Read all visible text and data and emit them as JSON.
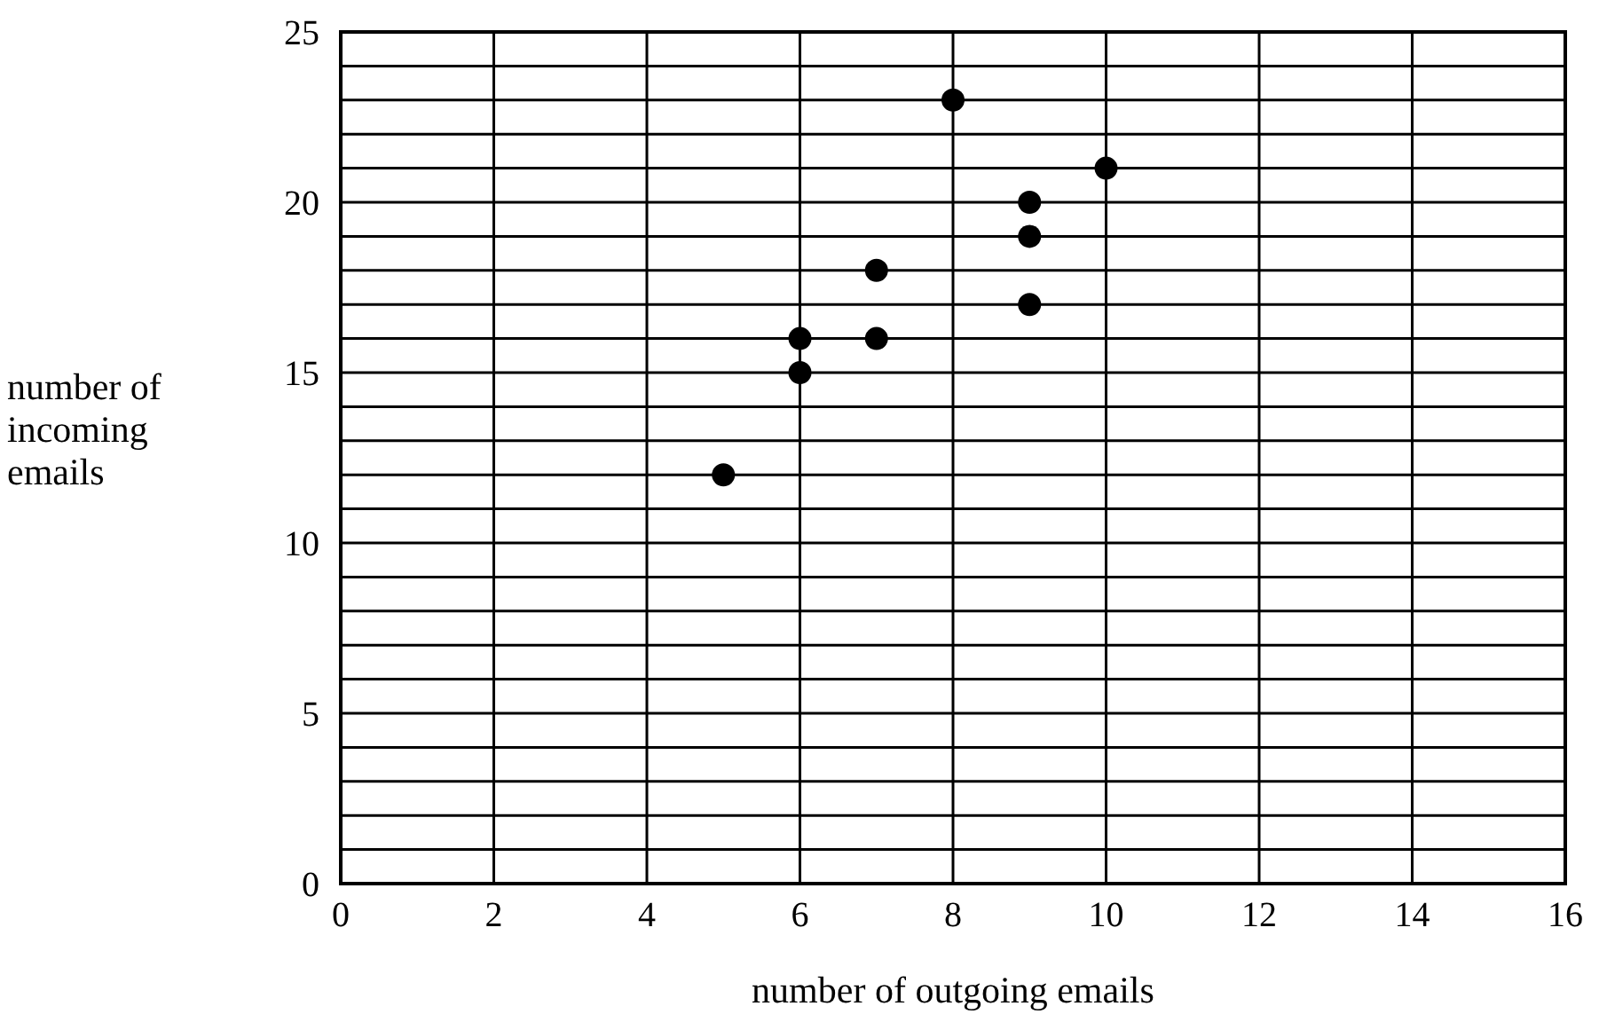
{
  "chart_data": {
    "type": "scatter",
    "xlabel": "number of outgoing emails",
    "ylabel": "number of incoming emails",
    "x": [
      5,
      6,
      6,
      7,
      7,
      8,
      9,
      9,
      9,
      10
    ],
    "series": [
      {
        "color": "#000000",
        "values": [
          12,
          15,
          16,
          16,
          18,
          23,
          20,
          19,
          17,
          21
        ]
      }
    ],
    "xlim": [
      0,
      16
    ],
    "xticks": [
      0,
      2,
      4,
      6,
      8,
      10,
      12,
      14,
      16
    ],
    "ylim": [
      0,
      25
    ],
    "yticks": [
      0,
      {
        "value": 1,
        "label": null
      },
      {
        "value": 2,
        "label": null
      },
      {
        "value": 3,
        "label": null
      },
      {
        "value": 4,
        "label": null
      },
      5,
      {
        "value": 6,
        "label": null
      },
      {
        "value": 7,
        "label": null
      },
      {
        "value": 8,
        "label": null
      },
      {
        "value": 9,
        "label": null
      },
      10,
      {
        "value": 11,
        "label": null
      },
      {
        "value": 12,
        "label": null
      },
      {
        "value": 13,
        "label": null
      },
      {
        "value": 14,
        "label": null
      },
      15,
      {
        "value": 16,
        "label": null
      },
      {
        "value": 17,
        "label": null
      },
      {
        "value": 18,
        "label": null
      },
      {
        "value": 19,
        "label": null
      },
      20,
      {
        "value": 21,
        "label": null
      },
      {
        "value": 22,
        "label": null
      },
      {
        "value": 23,
        "label": null
      },
      {
        "value": 24,
        "label": null
      },
      25
    ],
    "grid": true,
    "marker": "circle"
  }
}
